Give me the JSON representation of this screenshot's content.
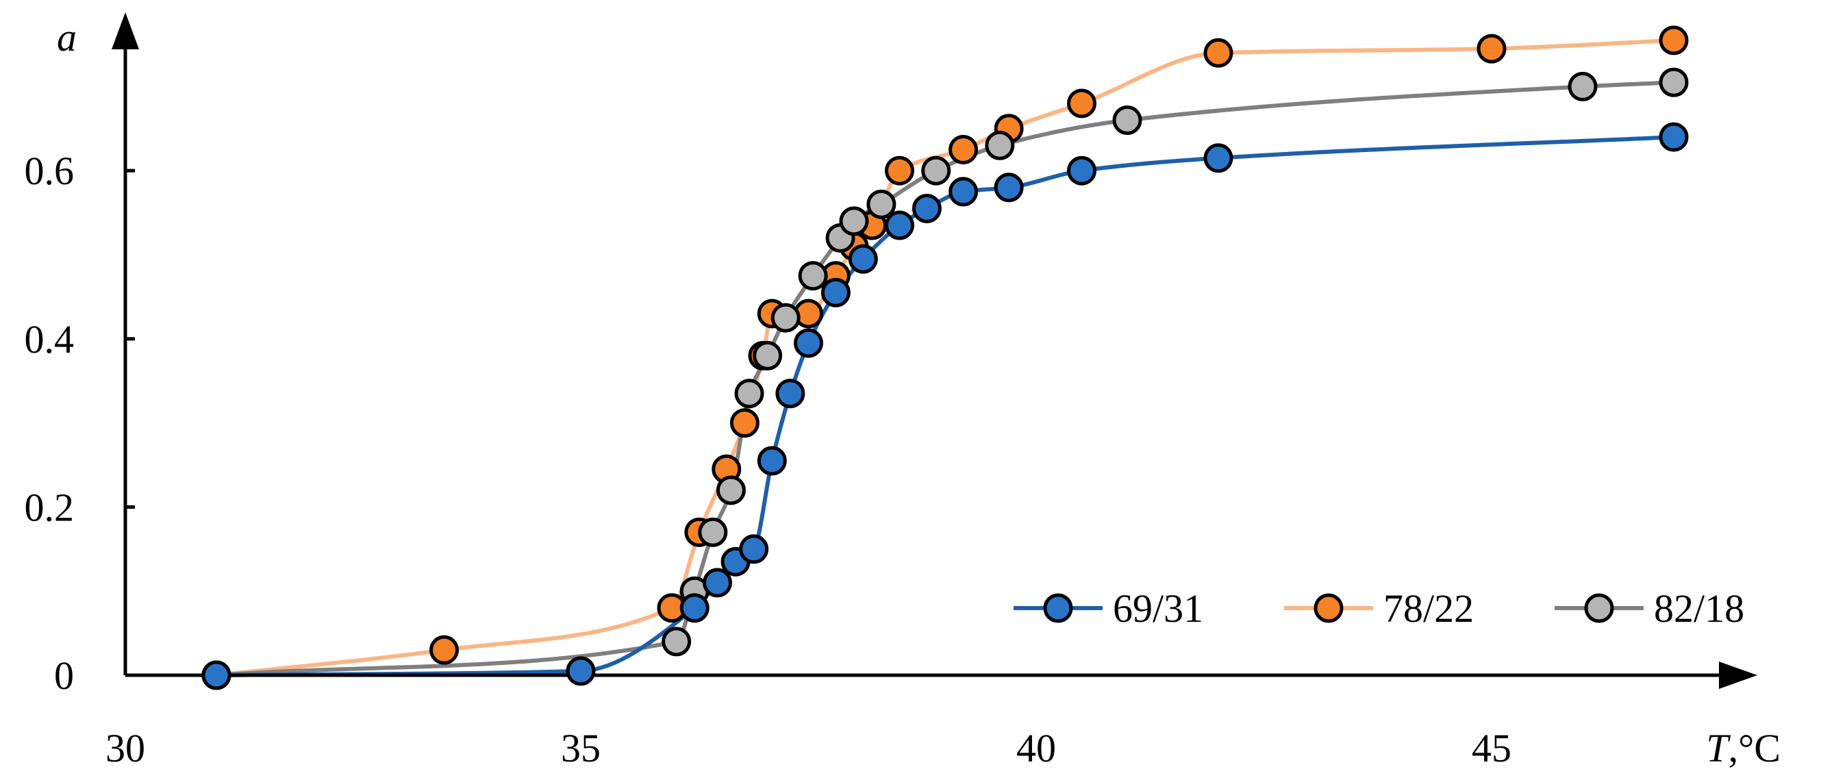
{
  "chart_data": {
    "type": "line",
    "xlabel_var": "T",
    "xlabel_unit": ",°C",
    "ylabel": "a",
    "xlim": [
      30,
      47.5
    ],
    "ylim": [
      0,
      0.75
    ],
    "x_ticks": [
      "30",
      "35",
      "40",
      "45"
    ],
    "y_ticks": [
      "0",
      "0.2",
      "0.4",
      "0.6"
    ],
    "x_tick_values": [
      30,
      35,
      40,
      45
    ],
    "y_tick_values": [
      0,
      0.2,
      0.4,
      0.6
    ],
    "grid": false,
    "legend_position": "bottom-right",
    "series": [
      {
        "name": "69/31",
        "line_color": "#1f5fa8",
        "marker_color": "#2a74c8",
        "points": [
          [
            31,
            0
          ],
          [
            35,
            0.005
          ],
          [
            36.25,
            0.08
          ],
          [
            36.5,
            0.11
          ],
          [
            36.7,
            0.135
          ],
          [
            36.9,
            0.15
          ],
          [
            37.1,
            0.255
          ],
          [
            37.3,
            0.335
          ],
          [
            37.5,
            0.395
          ],
          [
            37.8,
            0.455
          ],
          [
            38.1,
            0.495
          ],
          [
            38.5,
            0.535
          ],
          [
            38.8,
            0.555
          ],
          [
            39.2,
            0.575
          ],
          [
            39.7,
            0.58
          ],
          [
            40.5,
            0.6
          ],
          [
            42,
            0.615
          ],
          [
            47,
            0.64
          ]
        ]
      },
      {
        "name": "78/22",
        "line_color": "#fbb585",
        "marker_color": "#f58226",
        "points": [
          [
            31,
            0
          ],
          [
            33.5,
            0.03
          ],
          [
            36,
            0.08
          ],
          [
            36.3,
            0.17
          ],
          [
            36.6,
            0.245
          ],
          [
            36.8,
            0.3
          ],
          [
            37,
            0.38
          ],
          [
            37.1,
            0.43
          ],
          [
            37.5,
            0.43
          ],
          [
            37.8,
            0.475
          ],
          [
            38,
            0.51
          ],
          [
            38.2,
            0.535
          ],
          [
            38.5,
            0.6
          ],
          [
            39.2,
            0.625
          ],
          [
            39.7,
            0.65
          ],
          [
            40.5,
            0.68
          ],
          [
            42,
            0.74
          ],
          [
            45,
            0.745
          ],
          [
            47,
            0.755
          ]
        ]
      },
      {
        "name": "82/18",
        "line_color": "#7f7f7f",
        "marker_color": "#b4b4b4",
        "points": [
          [
            31,
            0
          ],
          [
            36.05,
            0.04
          ],
          [
            36.25,
            0.1
          ],
          [
            36.45,
            0.17
          ],
          [
            36.65,
            0.22
          ],
          [
            36.85,
            0.335
          ],
          [
            37.05,
            0.38
          ],
          [
            37.25,
            0.425
          ],
          [
            37.55,
            0.475
          ],
          [
            37.85,
            0.52
          ],
          [
            38,
            0.54
          ],
          [
            38.3,
            0.56
          ],
          [
            38.9,
            0.6
          ],
          [
            39.6,
            0.63
          ],
          [
            41,
            0.66
          ],
          [
            46,
            0.7
          ],
          [
            47,
            0.705
          ]
        ]
      }
    ]
  }
}
